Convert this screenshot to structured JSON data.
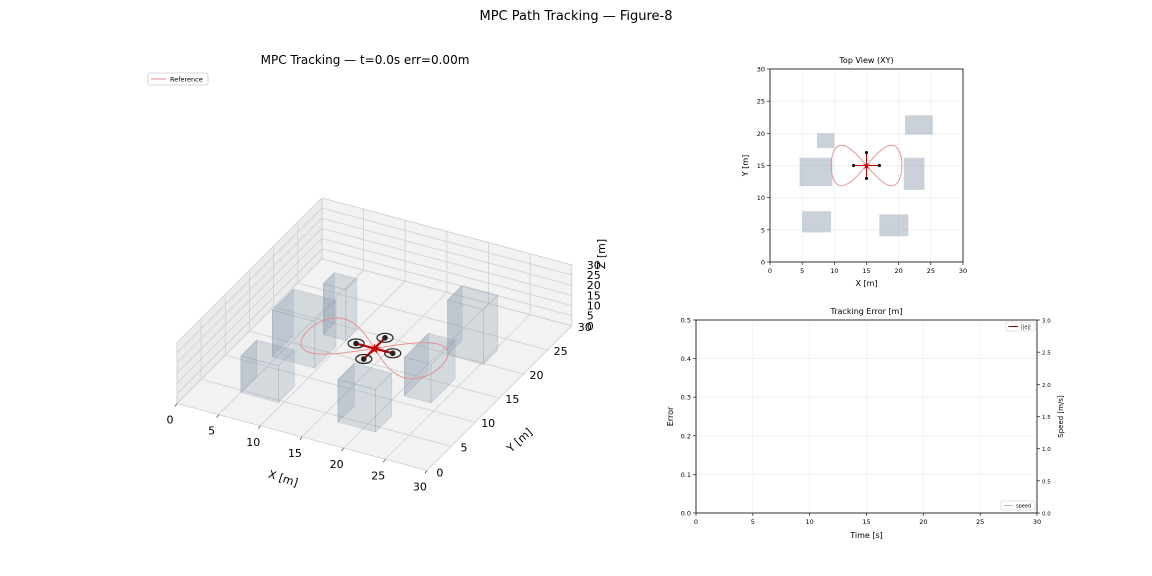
{
  "figure": {
    "title": "MPC Path Tracking — Figure-8"
  },
  "chart_data": [
    {
      "type": "3d",
      "name": "main-3d",
      "title": "MPC Tracking — t=0.0s  err=0.00m",
      "xlabel": "X [m]",
      "ylabel": "Y [m]",
      "zlabel": "Z [m]",
      "xlim": [
        0,
        30
      ],
      "ylim": [
        0,
        30
      ],
      "zlim": [
        0,
        30
      ],
      "xticks": [
        "0",
        "5",
        "10",
        "15",
        "20",
        "25",
        "30"
      ],
      "yticks": [
        "0",
        "5",
        "10",
        "15",
        "20",
        "25",
        "30"
      ],
      "zticks": [
        "0",
        "5",
        "10",
        "15",
        "20",
        "25",
        "30"
      ],
      "legend": {
        "entries": [
          "Reference"
        ],
        "placement": "top-left"
      },
      "drone": {
        "x": 15,
        "y": 15,
        "z": 8
      },
      "colors": {
        "reference": "#e88a8a",
        "drone_center": "#cc0000",
        "building": "#8a99ab"
      }
    },
    {
      "type": "line",
      "name": "top-view",
      "title": "Top View (XY)",
      "xlabel": "X [m]",
      "ylabel": "Y [m]",
      "xlim": [
        0,
        30
      ],
      "ylim": [
        0,
        30
      ],
      "xticks": [
        "0",
        "5",
        "10",
        "15",
        "20",
        "25",
        "30"
      ],
      "yticks": [
        "0",
        "5",
        "10",
        "15",
        "20",
        "25",
        "30"
      ],
      "grid": true,
      "obstacles": [
        {
          "x": [
            7.3,
            10
          ],
          "y": [
            17.7,
            20
          ]
        },
        {
          "x": [
            21,
            25.3
          ],
          "y": [
            19.8,
            22.8
          ]
        },
        {
          "x": [
            4.6,
            9.7
          ],
          "y": [
            11.8,
            16.2
          ]
        },
        {
          "x": [
            20.8,
            24
          ],
          "y": [
            11.2,
            16.2
          ]
        },
        {
          "x": [
            5,
            9.5
          ],
          "y": [
            4.6,
            7.9
          ]
        },
        {
          "x": [
            17,
            21.5
          ],
          "y": [
            4,
            7.4
          ]
        }
      ],
      "drone": {
        "x": 15,
        "y": 15
      },
      "colors": {
        "reference": "#e88a8a",
        "obstacle": "#8a99ab",
        "drone_center": "#cc0000"
      }
    },
    {
      "type": "line",
      "name": "tracking-error",
      "title": "Tracking Error [m]",
      "xlabel": "Time [s]",
      "ylabel": "Error",
      "y2label": "Speed [m/s]",
      "xlim": [
        0,
        30
      ],
      "ylim": [
        0,
        0.5
      ],
      "y2lim": [
        0,
        3.0
      ],
      "xticks": [
        "0",
        "5",
        "10",
        "15",
        "20",
        "25",
        "30"
      ],
      "yticks": [
        "0.0",
        "0.1",
        "0.2",
        "0.3",
        "0.4",
        "0.5"
      ],
      "y2ticks": [
        "0.0",
        "0.5",
        "1.0",
        "1.5",
        "2.0",
        "2.5",
        "3.0"
      ],
      "grid": true,
      "series": [
        {
          "name": "||e||",
          "values": [],
          "color": "#8b0000"
        },
        {
          "name": "speed",
          "values": [],
          "color": "#bbbbbb"
        }
      ],
      "legend_error": "||e||",
      "legend_speed": "speed"
    }
  ]
}
